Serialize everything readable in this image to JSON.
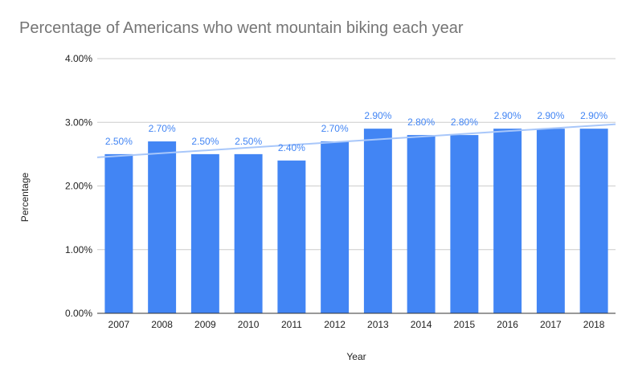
{
  "chart_data": {
    "type": "bar",
    "title": "Percentage of Americans who went mountain biking each year",
    "xlabel": "Year",
    "ylabel": "Percentage",
    "categories": [
      "2007",
      "2008",
      "2009",
      "2010",
      "2011",
      "2012",
      "2013",
      "2014",
      "2015",
      "2016",
      "2017",
      "2018"
    ],
    "values": [
      2.5,
      2.7,
      2.5,
      2.5,
      2.4,
      2.7,
      2.9,
      2.8,
      2.8,
      2.9,
      2.9,
      2.9
    ],
    "data_labels": [
      "2.50%",
      "2.70%",
      "2.50%",
      "2.50%",
      "2.40%",
      "2.70%",
      "2.90%",
      "2.80%",
      "2.80%",
      "2.90%",
      "2.90%",
      "2.90%"
    ],
    "ylim": [
      0,
      4
    ],
    "yticks": [
      0,
      1,
      2,
      3,
      4
    ],
    "ytick_labels": [
      "0.00%",
      "1.00%",
      "2.00%",
      "3.00%",
      "4.00%"
    ],
    "grid": true,
    "legend": "none",
    "trendline": {
      "type": "linear",
      "start": 2.45,
      "end": 2.97
    },
    "colors": {
      "bar": "#4285f4",
      "trendline": "#a8c7fa",
      "label": "#4285f4",
      "grid": "#cccccc",
      "axis": "#333333"
    }
  }
}
